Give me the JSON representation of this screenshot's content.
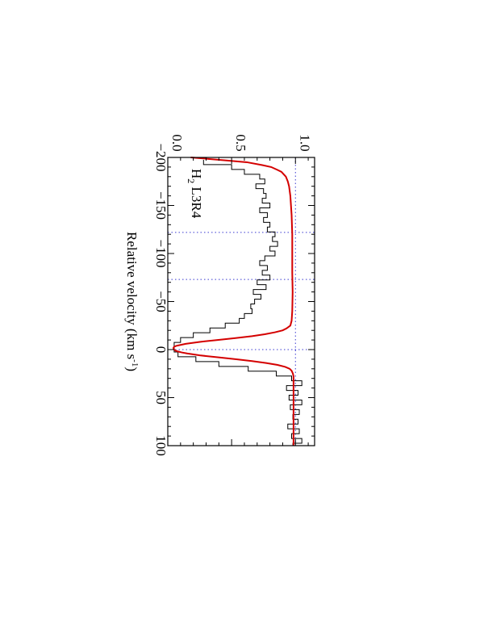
{
  "chart_data": {
    "type": "line",
    "orientation": "rotated 90 degrees clockwise (velocity runs top-to-bottom, flux increases to the right)",
    "panel_label": {
      "main": "H",
      "sub": "2",
      "rest": " L3R4"
    },
    "xlabel": {
      "main": "Relative velocity (km s",
      "sup": "-1",
      "end": ")"
    },
    "ylabel": "",
    "xlim": [
      -200,
      100
    ],
    "ylim": [
      0.0,
      1.15
    ],
    "x_ticks": [
      {
        "value": -200,
        "label": "−200"
      },
      {
        "value": -150,
        "label": "−150"
      },
      {
        "value": -100,
        "label": "−100"
      },
      {
        "value": -50,
        "label": "−50"
      },
      {
        "value": 0,
        "label": "0"
      },
      {
        "value": 50,
        "label": "50"
      },
      {
        "value": 100,
        "label": "100"
      }
    ],
    "x_minor_step": 10,
    "y_ticks": [
      {
        "value": 0.0,
        "label": "0.0"
      },
      {
        "value": 0.5,
        "label": "0.5"
      },
      {
        "value": 1.0,
        "label": "1.0"
      }
    ],
    "y_minor_step": 0.1,
    "reference_lines": {
      "vertical_velocities": [
        -122,
        -73,
        0
      ],
      "horizontal_flux": [
        0.0,
        1.0
      ]
    },
    "colors": {
      "data": "#000000",
      "model": "#d40000",
      "reference": "#3a3ad0"
    },
    "series": [
      {
        "style": "histogram",
        "x": [
          -195,
          -190,
          -185,
          -180,
          -175,
          -170,
          -165,
          -160,
          -155,
          -150,
          -145,
          -140,
          -135,
          -130,
          -125,
          -120,
          -115,
          -110,
          -105,
          -100,
          -95,
          -90,
          -85,
          -80,
          -75,
          -70,
          -65,
          -60,
          -55,
          -50,
          -45,
          -40,
          -35,
          -30,
          -25,
          -20,
          -15,
          -10,
          -5,
          0,
          5,
          10,
          15,
          20,
          25,
          30,
          35,
          40,
          45,
          50,
          55,
          60,
          65,
          70,
          75,
          80,
          85,
          90,
          95,
          100
        ],
        "y": [
          0.28,
          0.5,
          0.6,
          0.72,
          0.76,
          0.69,
          0.75,
          0.77,
          0.74,
          0.8,
          0.72,
          0.78,
          0.75,
          0.8,
          0.78,
          0.84,
          0.82,
          0.86,
          0.8,
          0.84,
          0.76,
          0.72,
          0.78,
          0.74,
          0.8,
          0.7,
          0.77,
          0.67,
          0.73,
          0.68,
          0.65,
          0.66,
          0.6,
          0.56,
          0.45,
          0.33,
          0.2,
          0.1,
          0.05,
          0.05,
          0.08,
          0.22,
          0.4,
          0.63,
          0.85,
          0.97,
          1.05,
          0.93,
          1.02,
          0.95,
          1.05,
          0.96,
          1.03,
          0.98,
          1.02,
          0.94,
          1.03,
          0.97,
          1.05,
          0.98
        ]
      },
      {
        "style": "line",
        "x": [
          -200,
          -197,
          -195,
          -192,
          -190,
          -187,
          -185,
          -180,
          -175,
          -170,
          -160,
          -150,
          -140,
          -120,
          -100,
          -80,
          -60,
          -40,
          -30,
          -25,
          -22,
          -20,
          -18,
          -16,
          -14,
          -12,
          -10,
          -8,
          -6,
          -4,
          -3,
          -2,
          -1,
          0,
          1,
          2,
          3,
          4,
          6,
          8,
          10,
          12,
          14,
          16,
          18,
          20,
          22,
          25,
          28,
          30,
          35,
          40,
          50,
          60,
          70,
          80,
          90,
          100
        ],
        "y": [
          0.18,
          0.45,
          0.62,
          0.74,
          0.81,
          0.86,
          0.89,
          0.925,
          0.94,
          0.95,
          0.96,
          0.965,
          0.97,
          0.975,
          0.975,
          0.975,
          0.978,
          0.975,
          0.97,
          0.96,
          0.93,
          0.9,
          0.84,
          0.76,
          0.66,
          0.53,
          0.39,
          0.25,
          0.14,
          0.07,
          0.05,
          0.045,
          0.045,
          0.05,
          0.06,
          0.08,
          0.11,
          0.15,
          0.25,
          0.39,
          0.53,
          0.66,
          0.77,
          0.86,
          0.92,
          0.955,
          0.97,
          0.98,
          0.985,
          0.985,
          0.985,
          0.985,
          0.985,
          0.985,
          0.985,
          0.985,
          0.985,
          0.985
        ]
      }
    ]
  }
}
